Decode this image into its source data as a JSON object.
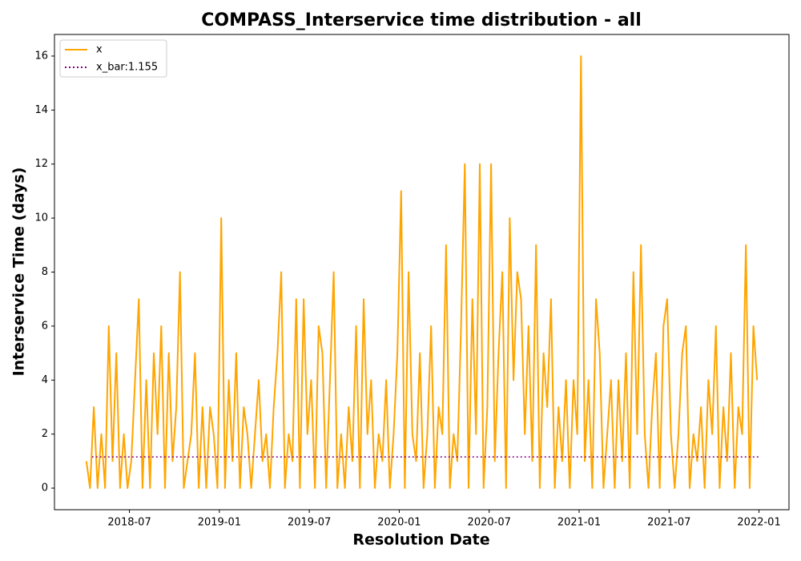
{
  "chart_data": {
    "type": "line",
    "title": "COMPASS_Interservice time distribution - all",
    "xlabel": "Resolution Date",
    "ylabel": "Interservice Time (days)",
    "xlim": [
      "2018-02",
      "2022-03"
    ],
    "xticks": [
      "2018-07",
      "2019-01",
      "2019-07",
      "2020-01",
      "2020-07",
      "2021-01",
      "2021-07",
      "2022-01"
    ],
    "ylim": [
      -0.8,
      16.8
    ],
    "yticks": [
      0,
      2,
      4,
      6,
      8,
      10,
      12,
      14,
      16
    ],
    "legend": "upper left",
    "series": [
      {
        "name": "x",
        "color": "#ffa500",
        "style": "solid",
        "x": [
          "2018-04",
          "2018-04",
          "2018-04",
          "2018-04",
          "2018-05",
          "2018-05",
          "2018-05",
          "2018-05",
          "2018-06",
          "2018-06",
          "2018-06",
          "2018-06",
          "2018-07",
          "2018-07",
          "2018-07",
          "2018-07",
          "2018-08",
          "2018-08",
          "2018-08",
          "2018-08",
          "2018-09",
          "2018-09",
          "2018-09",
          "2018-09",
          "2018-10",
          "2018-10",
          "2018-10",
          "2018-10",
          "2018-11",
          "2018-11",
          "2018-11",
          "2018-11",
          "2018-12",
          "2018-12",
          "2018-12",
          "2018-12",
          "2019-01",
          "2019-01",
          "2019-01",
          "2019-01",
          "2019-02",
          "2019-02",
          "2019-02",
          "2019-02",
          "2019-03",
          "2019-03",
          "2019-03",
          "2019-03",
          "2019-04",
          "2019-04",
          "2019-04",
          "2019-04",
          "2019-05",
          "2019-05",
          "2019-05",
          "2019-05",
          "2019-06",
          "2019-06",
          "2019-06",
          "2019-06",
          "2019-07",
          "2019-07",
          "2019-07",
          "2019-07",
          "2019-08",
          "2019-08",
          "2019-08",
          "2019-08",
          "2019-09",
          "2019-09",
          "2019-09",
          "2019-09",
          "2019-10",
          "2019-10",
          "2019-10",
          "2019-10",
          "2019-11",
          "2019-11",
          "2019-11",
          "2019-11",
          "2019-12",
          "2019-12",
          "2019-12",
          "2019-12",
          "2020-01",
          "2020-01",
          "2020-01",
          "2020-01",
          "2020-02",
          "2020-02",
          "2020-02",
          "2020-02",
          "2020-03",
          "2020-03",
          "2020-03",
          "2020-03",
          "2020-04",
          "2020-04",
          "2020-04",
          "2020-04",
          "2020-05",
          "2020-05",
          "2020-05",
          "2020-05",
          "2020-06",
          "2020-06",
          "2020-06",
          "2020-06",
          "2020-07",
          "2020-07",
          "2020-07",
          "2020-07",
          "2020-08",
          "2020-08",
          "2020-08",
          "2020-08",
          "2020-09",
          "2020-09",
          "2020-09",
          "2020-09",
          "2020-10",
          "2020-10",
          "2020-10",
          "2020-10",
          "2020-11",
          "2020-11",
          "2020-11",
          "2020-11",
          "2020-12",
          "2020-12",
          "2020-12",
          "2020-12",
          "2021-01",
          "2021-01",
          "2021-01",
          "2021-01",
          "2021-02",
          "2021-02",
          "2021-02",
          "2021-02",
          "2021-03",
          "2021-03",
          "2021-03",
          "2021-03",
          "2021-04",
          "2021-04",
          "2021-04",
          "2021-04",
          "2021-05",
          "2021-05",
          "2021-05",
          "2021-05",
          "2021-06",
          "2021-06",
          "2021-06",
          "2021-06",
          "2021-07",
          "2021-07",
          "2021-07",
          "2021-07",
          "2021-08",
          "2021-08",
          "2021-08",
          "2021-08",
          "2021-09",
          "2021-09",
          "2021-09",
          "2021-09",
          "2021-10",
          "2021-10",
          "2021-10",
          "2021-10",
          "2021-11",
          "2021-11",
          "2021-11",
          "2021-11",
          "2021-12",
          "2021-12",
          "2021-12",
          "2021-12"
        ],
        "values": [
          1,
          0,
          3,
          0,
          2,
          0,
          6,
          1,
          5,
          0,
          2,
          0,
          1,
          4,
          7,
          0,
          4,
          0,
          5,
          2,
          6,
          0,
          5,
          1,
          3,
          8,
          0,
          1,
          2,
          5,
          0,
          3,
          0,
          3,
          2,
          0,
          10,
          0,
          4,
          1,
          5,
          0,
          3,
          2,
          0,
          2,
          4,
          1,
          2,
          0,
          3,
          5,
          8,
          0,
          2,
          1,
          7,
          0,
          7,
          2,
          4,
          0,
          6,
          5,
          0,
          4,
          8,
          0,
          2,
          0,
          3,
          1,
          6,
          0,
          7,
          2,
          4,
          0,
          2,
          1,
          4,
          0,
          2,
          5,
          11,
          0,
          8,
          2,
          1,
          5,
          0,
          2,
          6,
          0,
          3,
          2,
          9,
          0,
          2,
          1,
          6,
          12,
          0,
          7,
          2,
          12,
          0,
          3,
          12,
          1,
          5,
          8,
          0,
          10,
          4,
          8,
          7,
          2,
          6,
          1,
          9,
          0,
          5,
          3,
          7,
          0,
          3,
          1,
          4,
          0,
          4,
          2,
          16,
          1,
          4,
          0,
          7,
          5,
          0,
          2,
          4,
          0,
          4,
          1,
          5,
          0,
          8,
          2,
          9,
          2,
          0,
          3,
          5,
          0,
          6,
          7,
          2,
          0,
          2,
          5,
          6,
          0,
          2,
          1,
          3,
          0,
          4,
          2,
          6,
          0,
          3,
          1,
          5,
          0,
          3,
          2,
          9,
          0,
          6,
          4
        ]
      },
      {
        "name": "x_bar:1.155",
        "color": "#800080",
        "style": "dotted",
        "x": [
          "2018-04",
          "2021-12"
        ],
        "value": 1.155
      }
    ]
  }
}
